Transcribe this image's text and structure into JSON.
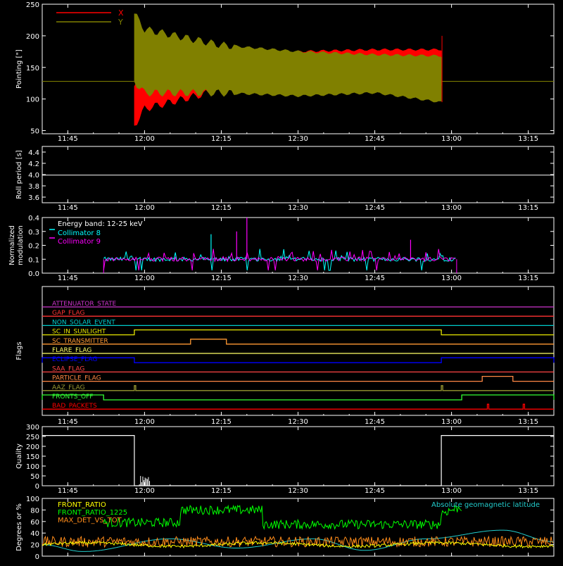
{
  "chart_data": [
    {
      "type": "line",
      "ylabel": "Pointing [\"]",
      "ylim": [
        45,
        250
      ],
      "yticks": [
        50,
        100,
        150,
        200,
        250
      ],
      "xticks": [
        "11:45",
        "12:00",
        "12:15",
        "12:30",
        "12:45",
        "13:00",
        "13:15"
      ],
      "legend": {
        "placement": "top-left",
        "entries": [
          {
            "name": "X",
            "color": "#ff0000"
          },
          {
            "name": "Y",
            "color": "#808000"
          }
        ]
      },
      "series": [
        {
          "name": "X",
          "color": "#ff0000",
          "x": [
            "11:40",
            "11:58",
            "12:00",
            "12:15",
            "12:30",
            "12:45",
            "12:58",
            "13:20"
          ],
          "low": [
            128,
            58,
            85,
            115,
            135,
            140,
            120,
            128
          ],
          "high": [
            128,
            120,
            128,
            145,
            175,
            178,
            178,
            128
          ]
        },
        {
          "name": "Y",
          "color": "#808000",
          "x": [
            "11:40",
            "11:58",
            "12:00",
            "12:15",
            "12:30",
            "12:45",
            "12:58",
            "13:20"
          ],
          "low": [
            128,
            128,
            110,
            110,
            105,
            110,
            95,
            128
          ],
          "high": [
            128,
            235,
            210,
            185,
            175,
            170,
            168,
            128
          ]
        }
      ]
    },
    {
      "type": "line",
      "ylabel": "Roll period [s]",
      "ylim": [
        3.5,
        4.5
      ],
      "yticks": [
        "3.6",
        "3.8",
        "4.0",
        "4.2",
        "4.4"
      ],
      "xticks": [
        "11:45",
        "12:00",
        "12:15",
        "12:30",
        "12:45",
        "13:00",
        "13:15"
      ],
      "series": [
        {
          "name": "Roll period",
          "color": "#ffffff",
          "x": [
            "11:40",
            "13:20"
          ],
          "y": [
            3.99,
            3.99
          ]
        }
      ]
    },
    {
      "type": "line",
      "ylabel": "Normalized modulation",
      "ylim": [
        0,
        0.4
      ],
      "yticks": [
        "0.0",
        "0.1",
        "0.2",
        "0.3",
        "0.4"
      ],
      "xticks": [
        "11:45",
        "12:00",
        "12:15",
        "12:30",
        "12:45",
        "13:00",
        "13:15"
      ],
      "annotation": "Energy band: 12-25 keV",
      "legend": {
        "placement": "top-left",
        "entries": [
          {
            "name": "Collimator 8",
            "color": "#00ffff"
          },
          {
            "name": "Collimator 9",
            "color": "#ff00ff"
          }
        ]
      },
      "series": [
        {
          "name": "Collimator 8",
          "color": "#00ffff",
          "x": [
            "11:52",
            "13:01"
          ],
          "y": [
            0.1,
            0.1
          ]
        },
        {
          "name": "Collimator 9",
          "color": "#ff00ff",
          "x": [
            "11:52",
            "13:01"
          ],
          "y": [
            0.1,
            0.1
          ]
        }
      ]
    },
    {
      "type": "line",
      "ylabel": "Flags",
      "xticks": [
        "11:45",
        "12:00",
        "12:15",
        "12:30",
        "12:45",
        "13:00",
        "13:15"
      ],
      "flags": [
        {
          "name": "ATTENUATOR_STATE",
          "color": "#cc33cc",
          "high_intervals": []
        },
        {
          "name": "GAP_FLAG",
          "color": "#ff3333",
          "high_intervals": []
        },
        {
          "name": "NON_SOLAR_EVENT",
          "color": "#00cccc",
          "high_intervals": []
        },
        {
          "name": "SC_IN_SUNLIGHT",
          "color": "#e6e600",
          "high_intervals": [
            [
              "11:58",
              "12:58"
            ]
          ]
        },
        {
          "name": "SC_TRANSMITTER",
          "color": "#ff9933",
          "high_intervals": [
            [
              "12:09",
              "12:16"
            ]
          ]
        },
        {
          "name": "FLARE_FLAG",
          "color": "#ffff66",
          "high_intervals": []
        },
        {
          "name": "ECLIPSE_FLAG",
          "color": "#0000ff",
          "high_intervals": [
            [
              "11:40",
              "11:58"
            ],
            [
              "12:58",
              "13:20"
            ]
          ]
        },
        {
          "name": "SAA_FLAG",
          "color": "#ff4444",
          "high_intervals": []
        },
        {
          "name": "PARTICLE_FLAG",
          "color": "#ff8844",
          "high_intervals": [
            [
              "13:06",
              "13:12"
            ]
          ]
        },
        {
          "name": "AAZ_FLAG",
          "color": "#999933",
          "high_intervals": [
            [
              "11:58",
              "11:58"
            ],
            [
              "12:58",
              "12:58"
            ]
          ]
        },
        {
          "name": "FRONTS_OFF",
          "color": "#33ff33",
          "high_intervals": [
            [
              "11:40",
              "11:52"
            ],
            [
              "13:02",
              "13:20"
            ]
          ]
        },
        {
          "name": "BAD_PACKETS",
          "color": "#ff0000",
          "high_intervals": [
            [
              "13:07",
              "13:07"
            ],
            [
              "13:14",
              "13:14"
            ]
          ]
        }
      ]
    },
    {
      "type": "line",
      "ylabel": "Quality",
      "ylim": [
        0,
        300
      ],
      "yticks": [
        "0",
        "50",
        "100",
        "150",
        "200",
        "250",
        "300"
      ],
      "xticks": [
        "11:45",
        "12:00",
        "12:15",
        "12:30",
        "12:45",
        "13:00",
        "13:15"
      ],
      "series": [
        {
          "name": "Quality",
          "color": "#ffffff",
          "x": [
            "11:40",
            "11:58",
            "11:58",
            "12:58",
            "12:58",
            "13:20"
          ],
          "y": [
            255,
            255,
            0,
            0,
            255,
            255
          ]
        }
      ]
    },
    {
      "type": "line",
      "ylabel": "Degrees or %",
      "ylim": [
        0,
        100
      ],
      "yticks": [
        "0",
        "20",
        "40",
        "60",
        "80",
        "100"
      ],
      "xticks": [
        "11:45",
        "12:00",
        "12:15",
        "12:30",
        "12:45",
        "13:00",
        "13:15"
      ],
      "legend": {
        "placement": "top-left",
        "entries": [
          {
            "name": "FRONT_RATIO",
            "color": "#ffff00"
          },
          {
            "name": "FRONT_RATIO_1225",
            "color": "#00ff00"
          },
          {
            "name": "MAX_DET_VS_TOT",
            "color": "#ff8c1a"
          }
        ]
      },
      "annotation": "Absolute geomagnetic latitude",
      "annotation_color": "#22cccc",
      "series": [
        {
          "name": "FRONT_RATIO",
          "color": "#ffff00",
          "x": [
            "11:40",
            "13:20"
          ],
          "y": [
            20,
            20
          ]
        },
        {
          "name": "FRONT_RATIO_1225",
          "color": "#00ff00",
          "x": [
            "11:52",
            "12:07",
            "12:07",
            "12:23",
            "12:23",
            "12:58",
            "12:58",
            "13:02"
          ],
          "y": [
            58,
            58,
            80,
            80,
            55,
            55,
            75,
            85
          ]
        },
        {
          "name": "MAX_DET_VS_TOT",
          "color": "#ff8c1a",
          "x": [
            "11:40",
            "13:20"
          ],
          "y": [
            25,
            25
          ]
        },
        {
          "name": "Absolute geomagnetic latitude",
          "color": "#22cccc",
          "x": [
            "11:40",
            "11:48",
            "12:05",
            "12:18",
            "12:33",
            "12:43",
            "12:55",
            "13:10",
            "13:20"
          ],
          "y": [
            20,
            8,
            30,
            14,
            30,
            10,
            30,
            45,
            25
          ]
        }
      ]
    }
  ]
}
